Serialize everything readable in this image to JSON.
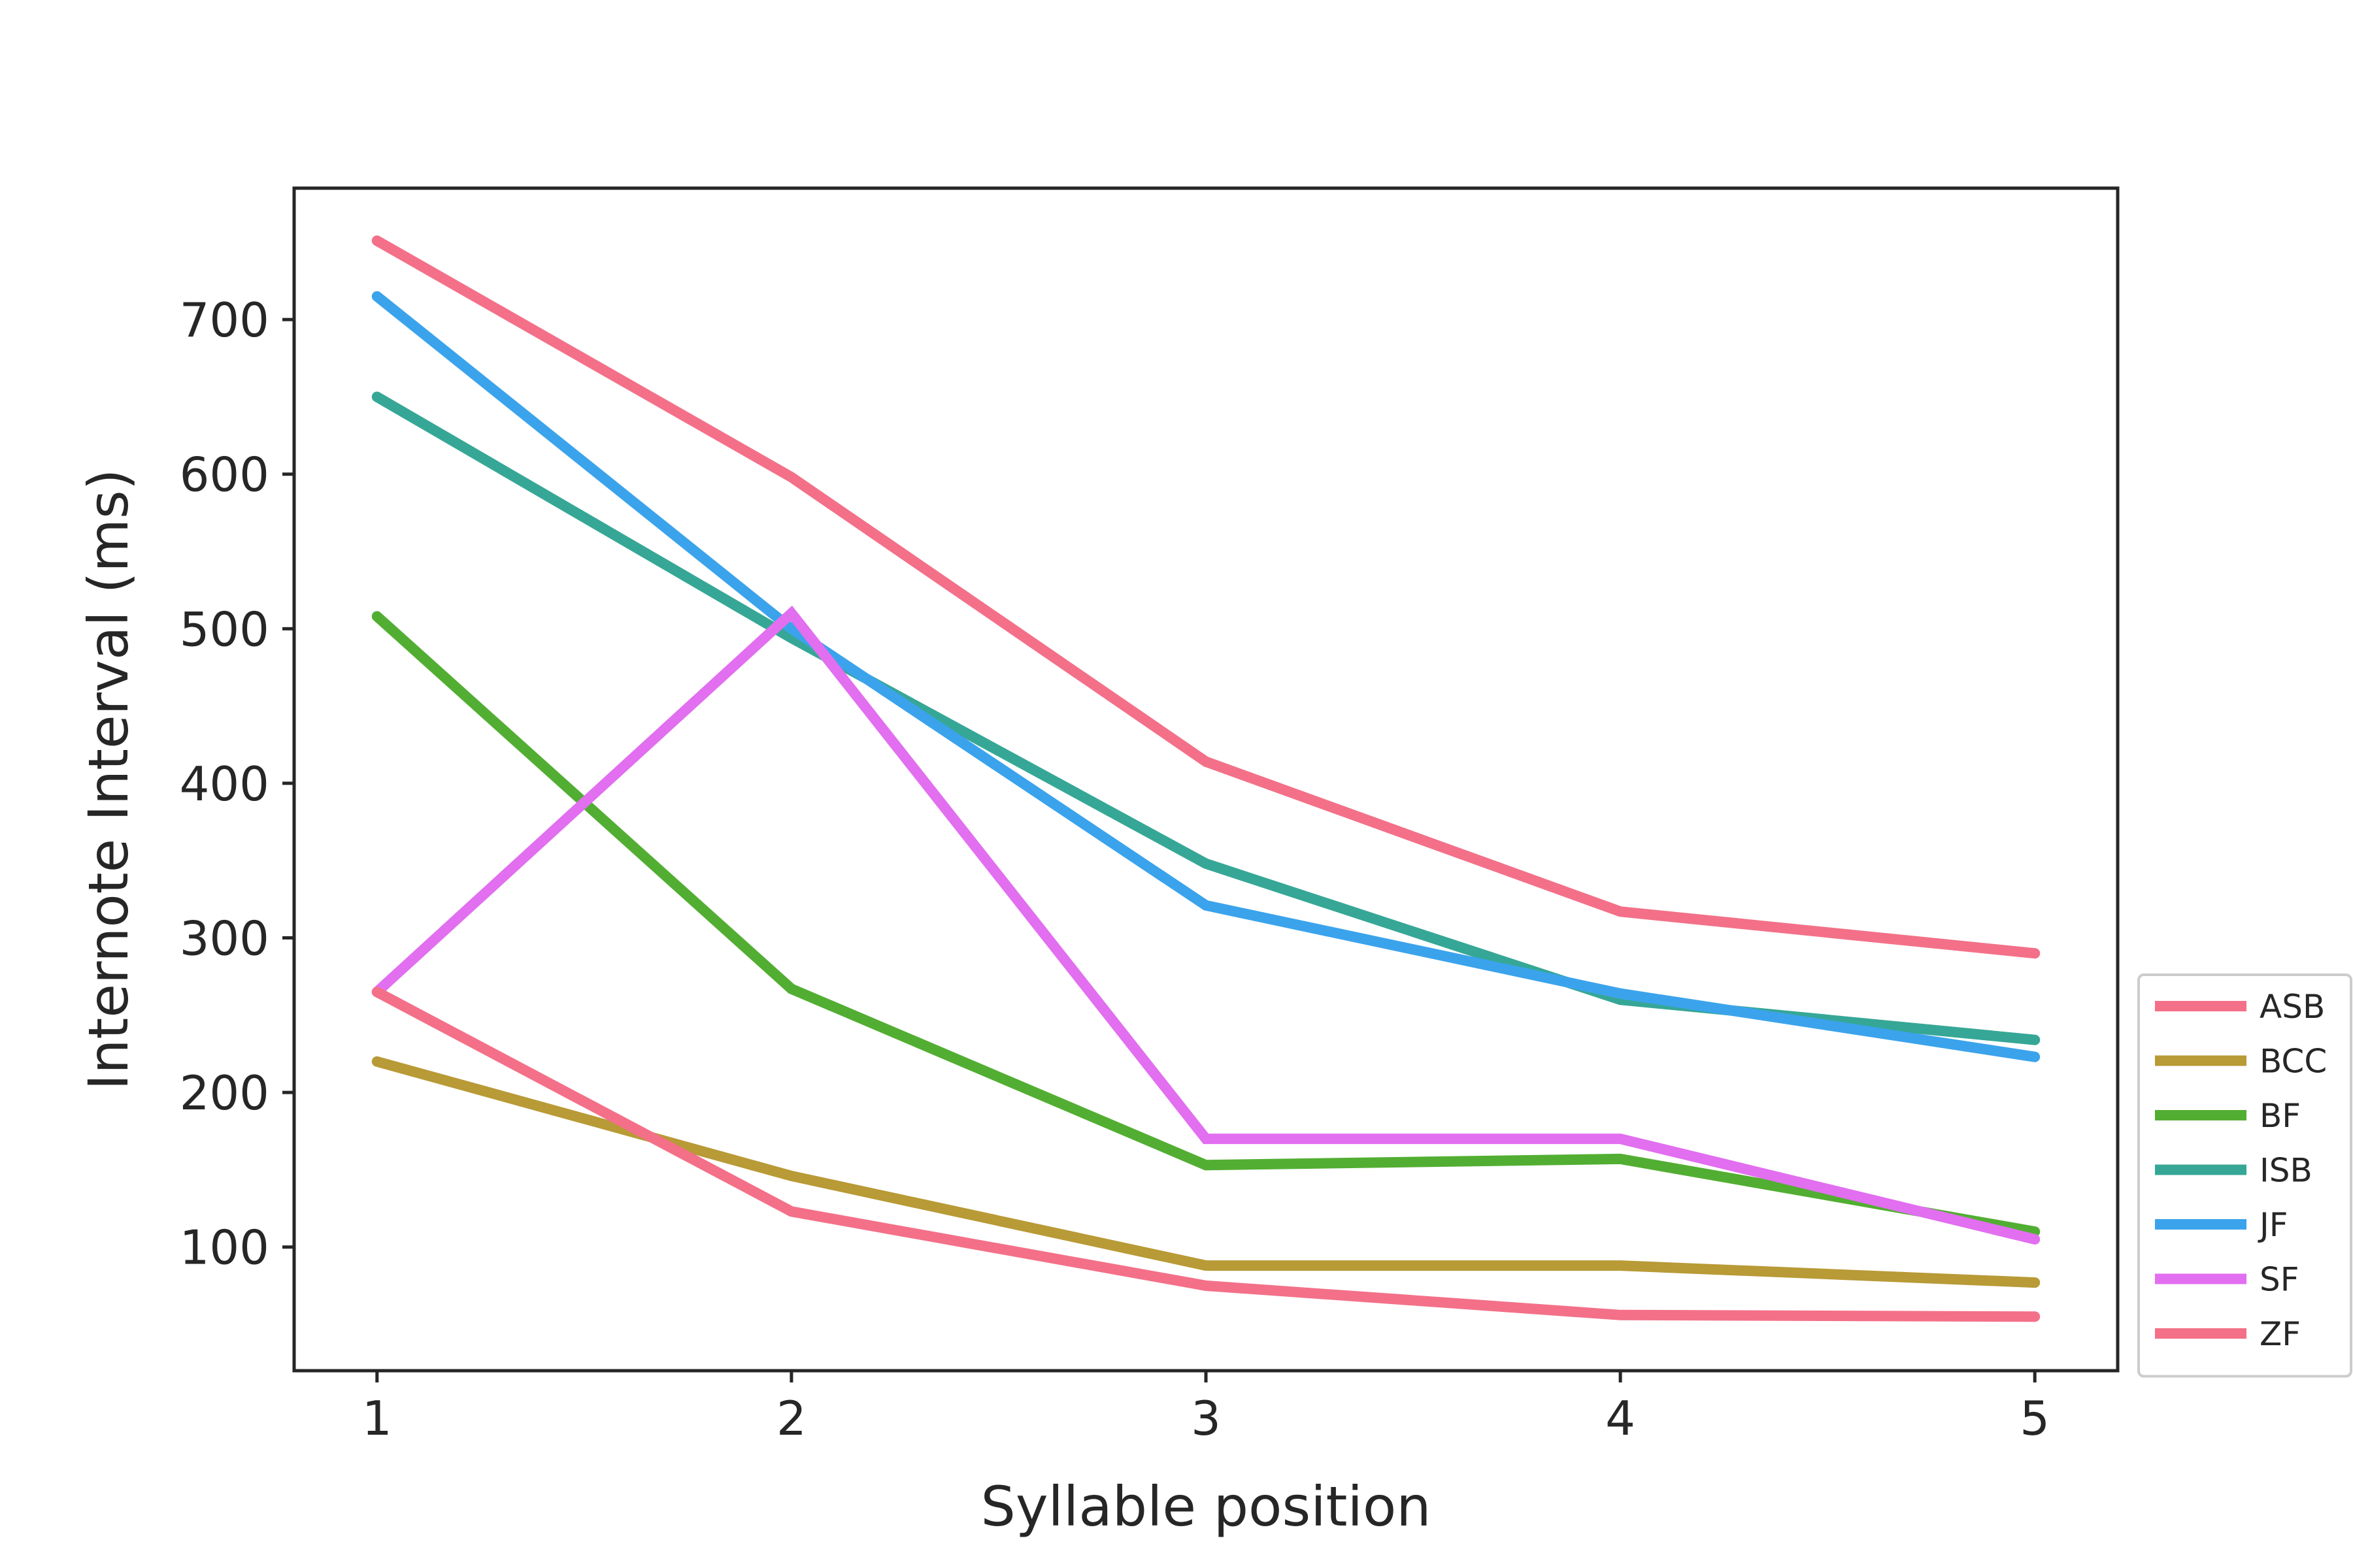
{
  "chart_data": {
    "type": "line",
    "title": "",
    "xlabel": "Syllable position",
    "ylabel": "Internote Interval (ms)",
    "x": [
      1,
      2,
      3,
      4,
      5
    ],
    "xticks": [
      "1",
      "2",
      "3",
      "4",
      "5"
    ],
    "yticks": [
      "100",
      "200",
      "300",
      "400",
      "500",
      "600",
      "700"
    ],
    "xlim": [
      0.8,
      5.2
    ],
    "ylim": [
      20,
      785
    ],
    "grid": false,
    "legend_position": "lower-right-outside",
    "series": [
      {
        "name": "ASB",
        "color": "#f37088",
        "values": [
          751,
          598,
          414,
          317,
          290
        ]
      },
      {
        "name": "BCC",
        "color": "#b89a36",
        "values": [
          220,
          146,
          88,
          88,
          77
        ]
      },
      {
        "name": "BF",
        "color": "#52ae32",
        "values": [
          508,
          267,
          153,
          157,
          110
        ]
      },
      {
        "name": "ISB",
        "color": "#36a796",
        "values": [
          650,
          494,
          348,
          260,
          234
        ]
      },
      {
        "name": "JF",
        "color": "#3ba3ec",
        "values": [
          715,
          500,
          321,
          264,
          223
        ]
      },
      {
        "name": "SF",
        "color": "#e26ef0",
        "values": [
          265,
          510,
          170,
          170,
          105
        ]
      },
      {
        "name": "ZF",
        "color": "#f37088",
        "values": [
          265,
          123,
          75,
          56,
          55
        ]
      }
    ]
  }
}
